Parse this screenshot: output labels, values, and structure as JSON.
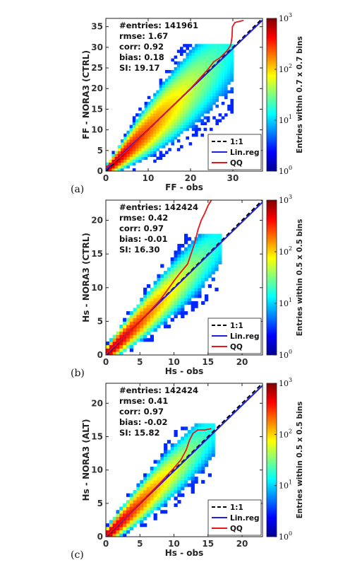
{
  "chart_data": [
    {
      "type": "heatmap",
      "panel_label": "(a)",
      "xlabel": "FF - obs",
      "ylabel": "FF - NORA3 (CTRL)",
      "xlim": [
        0,
        37
      ],
      "ylim": [
        0,
        37
      ],
      "xticks": [
        "0",
        "10",
        "20",
        "30"
      ],
      "yticks": [
        "0",
        "5",
        "10",
        "15",
        "20",
        "25",
        "30",
        "35"
      ],
      "bin": 0.7,
      "spread": 0.22,
      "extent": 30,
      "stats": [
        "#entries: 141961",
        "rmse:  1.67",
        "corr: 0.92",
        "bias:  0.18",
        "SI: 19.17"
      ],
      "legend": [
        "1:1",
        "Lin.reg",
        "QQ"
      ],
      "colorbar_label": "Entries within 0.7 x 0.7 bins",
      "colorbar_ticks": [
        {
          "base": "10",
          "exp": "0"
        },
        {
          "base": "10",
          "exp": "1"
        },
        {
          "base": "10",
          "exp": "2"
        },
        {
          "base": "10",
          "exp": "3"
        }
      ],
      "linreg": {
        "slope": 0.98,
        "intercept": 0.3
      },
      "qq": [
        [
          0,
          1.0
        ],
        [
          2,
          2.2
        ],
        [
          5,
          5.0
        ],
        [
          10,
          10.0
        ],
        [
          15,
          15.0
        ],
        [
          20,
          20.0
        ],
        [
          24,
          24.5
        ],
        [
          25.5,
          26.5
        ],
        [
          27,
          27.5
        ],
        [
          28.5,
          29.0
        ],
        [
          29.5,
          30.5
        ],
        [
          29.8,
          32.5
        ],
        [
          29.9,
          35.0
        ],
        [
          30.5,
          36.0
        ],
        [
          32.5,
          36.5
        ]
      ]
    },
    {
      "type": "heatmap",
      "panel_label": "(b)",
      "xlabel": "Hs - obs",
      "ylabel": "Hs - NORA3 (CTRL)",
      "xlim": [
        0,
        23
      ],
      "ylim": [
        0,
        23
      ],
      "xticks": [
        "0",
        "5",
        "10",
        "15",
        "20"
      ],
      "yticks": [
        "0",
        "5",
        "10",
        "15",
        "20"
      ],
      "bin": 0.5,
      "spread": 0.15,
      "extent": 17,
      "stats": [
        "#entries: 142424",
        "rmse:  0.42",
        "corr: 0.97",
        "bias: -0.01",
        "SI: 16.30"
      ],
      "legend": [
        "1:1",
        "Lin.reg",
        "QQ"
      ],
      "colorbar_label": "Entries within 0.5 x 0.5 bins",
      "colorbar_ticks": [
        {
          "base": "10",
          "exp": "0"
        },
        {
          "base": "10",
          "exp": "1"
        },
        {
          "base": "10",
          "exp": "2"
        },
        {
          "base": "10",
          "exp": "3"
        }
      ],
      "linreg": {
        "slope": 0.985,
        "intercept": 0.05
      },
      "qq": [
        [
          0,
          0.1
        ],
        [
          3,
          3.0
        ],
        [
          6,
          6.0
        ],
        [
          8,
          8.2
        ],
        [
          9,
          9.6
        ],
        [
          10,
          11.0
        ],
        [
          11,
          12.3
        ],
        [
          12,
          13.5
        ],
        [
          12.5,
          15.0
        ],
        [
          13,
          16.5
        ],
        [
          13.5,
          18.5
        ],
        [
          14,
          20.0
        ],
        [
          14.5,
          21.0
        ],
        [
          15,
          22.2
        ],
        [
          15.5,
          23.0
        ]
      ]
    },
    {
      "type": "heatmap",
      "panel_label": "(c)",
      "xlabel": "Hs - obs",
      "ylabel": "Hs - NORA3 (ALT)",
      "xlim": [
        0,
        23
      ],
      "ylim": [
        0,
        23
      ],
      "xticks": [
        "0",
        "5",
        "10",
        "15",
        "20"
      ],
      "yticks": [
        "0",
        "5",
        "10",
        "15",
        "20"
      ],
      "bin": 0.5,
      "spread": 0.15,
      "extent": 16,
      "stats": [
        "#entries: 142424",
        "rmse:  0.41",
        "corr: 0.97",
        "bias: -0.02",
        "SI: 15.82"
      ],
      "legend": [
        "1:1",
        "Lin.reg",
        "QQ"
      ],
      "colorbar_label": "Entries within 0.5 x 0.5 bins",
      "colorbar_ticks": [
        {
          "base": "10",
          "exp": "0"
        },
        {
          "base": "10",
          "exp": "1"
        },
        {
          "base": "10",
          "exp": "2"
        },
        {
          "base": "10",
          "exp": "3"
        }
      ],
      "linreg": {
        "slope": 0.985,
        "intercept": 0.0
      },
      "qq": [
        [
          0,
          0.1
        ],
        [
          3,
          3.0
        ],
        [
          6,
          6.0
        ],
        [
          8,
          8.1
        ],
        [
          10,
          10.3
        ],
        [
          11,
          11.5
        ],
        [
          11.8,
          13.0
        ],
        [
          12.3,
          14.5
        ],
        [
          12.8,
          15.5
        ],
        [
          13.5,
          16.0
        ],
        [
          14.5,
          16.0
        ],
        [
          15.5,
          16.2
        ]
      ]
    }
  ]
}
